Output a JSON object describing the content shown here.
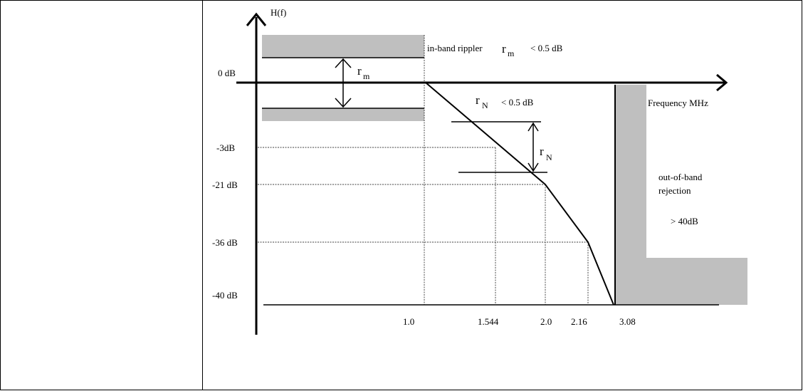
{
  "diagram": {
    "y_axis_label": "H(f)",
    "x_axis_label": "Frequency MHz",
    "y_ticks": [
      "0 dB",
      "-3dB",
      "-21 dB",
      "-36 dB",
      "-40 dB"
    ],
    "x_ticks": [
      "1.0",
      "1.544",
      "2.0",
      "2.16",
      "3.08"
    ],
    "inband_text": "in-band rippler",
    "inband_sym": "r",
    "inband_sub": "m",
    "inband_limit": "< 0.5 dB",
    "rm_sym": "r",
    "rm_sub": "m",
    "rn_header_sym": "r",
    "rn_header_sub": "N",
    "rn_limit": "< 0.5 dB",
    "rn_sym": "r",
    "rn_sub": "N",
    "oob_line1": "out-of-band",
    "oob_line2": "rejection",
    "oob_value": "> 40dB",
    "colors": {
      "shade": "#bfbfbf",
      "line": "#000000"
    }
  }
}
